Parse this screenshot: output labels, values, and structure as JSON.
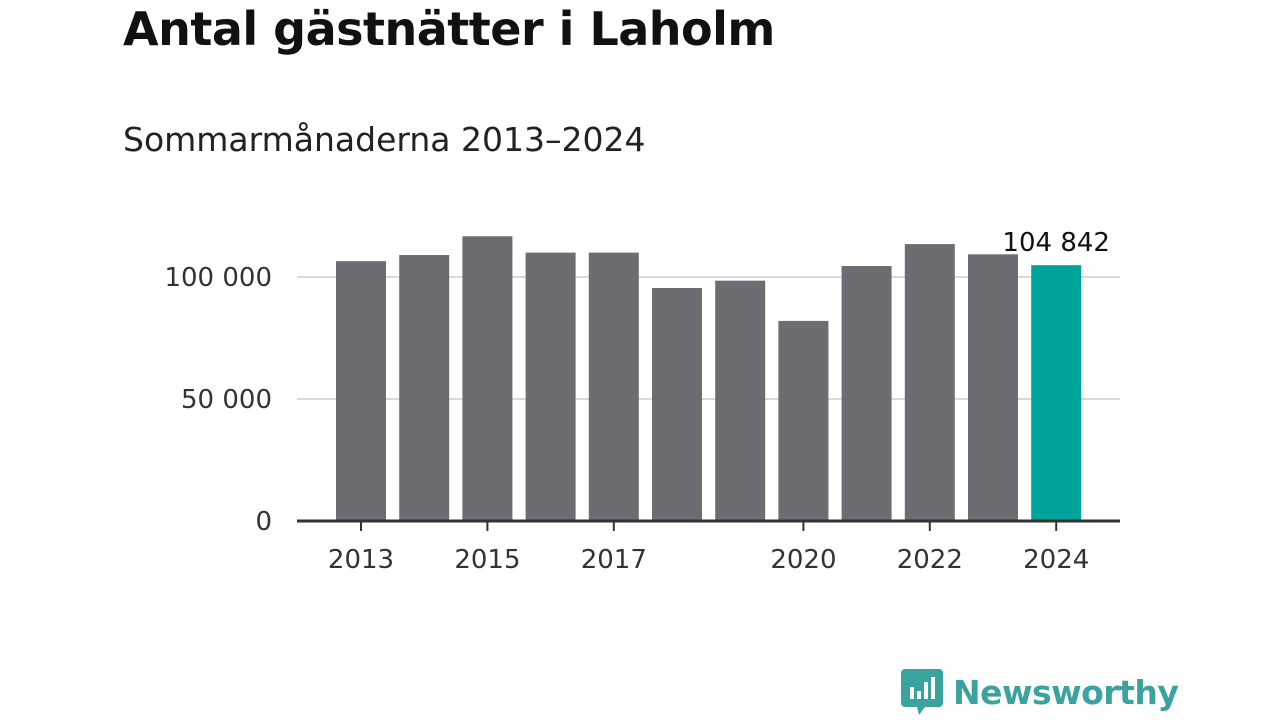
{
  "title": "Antal gästnätter i Laholm",
  "subtitle": "Sommarmånaderna 2013–2024",
  "chart_data": {
    "type": "bar",
    "categories": [
      "2013",
      "2014",
      "2015",
      "2016",
      "2017",
      "2018",
      "2019",
      "2020",
      "2021",
      "2022",
      "2023",
      "2024"
    ],
    "values": [
      106500,
      109000,
      116700,
      110000,
      110000,
      95500,
      98500,
      82000,
      104500,
      113500,
      109300,
      104842
    ],
    "ylim": [
      0,
      125000
    ],
    "yticks": [
      0,
      50000,
      100000
    ],
    "ytick_labels": [
      "0",
      "50 000",
      "100 000"
    ],
    "xtick_labels": [
      "2013",
      "2015",
      "2017",
      "2020",
      "2022",
      "2024"
    ],
    "highlight_index": 11,
    "highlight_label": "104 842",
    "bar_color": "#6d6c73",
    "highlight_color": "#00a39a",
    "grid": true,
    "xlabel": "",
    "ylabel": ""
  },
  "brand": {
    "name": "Newsworthy",
    "logo_icon": "bar-chart-speech-bubble-icon",
    "color": "#3aa39d"
  }
}
